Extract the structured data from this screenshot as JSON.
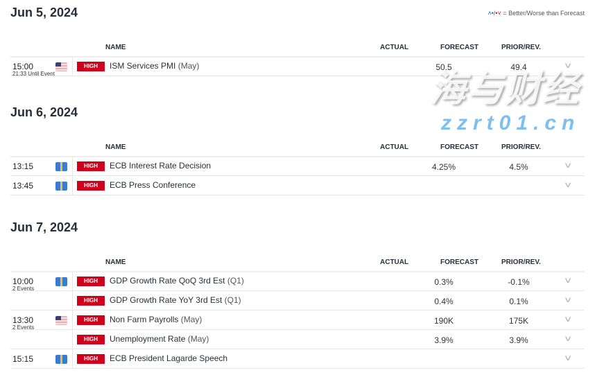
{
  "legend": {
    "better_icon": "wifi-up-icon",
    "worse_icon": "wifi-down-icon",
    "text": "= Better/Worse than Forecast",
    "sep": "/"
  },
  "columns": {
    "name": "NAME",
    "actual": "ACTUAL",
    "forecast": "FORECAST",
    "prior": "PRIOR/REV."
  },
  "days": [
    {
      "date": "Jun 5, 2024",
      "rows": [
        {
          "time": "15:00",
          "sub": "21:33 Until Event",
          "flag": "us",
          "impact": "HIGH",
          "name": "ISM Services PMI",
          "period": "(May)",
          "actual": "",
          "forecast": "50.5",
          "prior": "49.4"
        }
      ]
    },
    {
      "date": "Jun 6, 2024",
      "rows": [
        {
          "time": "13:15",
          "sub": "",
          "flag": "eu",
          "impact": "HIGH",
          "name": "ECB Interest Rate Decision",
          "period": "",
          "actual": "",
          "forecast": "4.25%",
          "prior": "4.5%"
        },
        {
          "time": "13:45",
          "sub": "",
          "flag": "eu",
          "impact": "HIGH",
          "name": "ECB Press Conference",
          "period": "",
          "actual": "",
          "forecast": "",
          "prior": ""
        }
      ]
    },
    {
      "date": "Jun 7, 2024",
      "rows": [
        {
          "time": "10:00",
          "sub": "2 Events",
          "flag": "eu",
          "impact": "HIGH",
          "name": "GDP Growth Rate QoQ 3rd Est",
          "period": "(Q1)",
          "actual": "",
          "forecast": "0.3%",
          "prior": "-0.1%"
        },
        {
          "time": "",
          "sub": "",
          "flag": "",
          "impact": "HIGH",
          "name": "GDP Growth Rate YoY 3rd Est",
          "period": "(Q1)",
          "actual": "",
          "forecast": "0.4%",
          "prior": "0.1%"
        },
        {
          "time": "13:30",
          "sub": "2 Events",
          "flag": "us",
          "impact": "HIGH",
          "name": "Non Farm Payrolls",
          "period": "(May)",
          "actual": "",
          "forecast": "190K",
          "prior": "175K"
        },
        {
          "time": "",
          "sub": "",
          "flag": "",
          "impact": "HIGH",
          "name": "Unemployment Rate",
          "period": "(May)",
          "actual": "",
          "forecast": "3.9%",
          "prior": "3.9%"
        },
        {
          "time": "15:15",
          "sub": "",
          "flag": "eu",
          "impact": "HIGH",
          "name": "ECB President Lagarde Speech",
          "period": "",
          "actual": "",
          "forecast": "",
          "prior": ""
        }
      ]
    }
  ],
  "watermark": {
    "cn": "海与财经",
    "url": "zzrt01.cn"
  }
}
